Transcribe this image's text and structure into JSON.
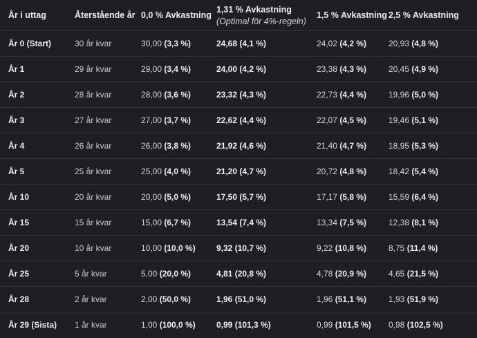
{
  "headers": {
    "year": "År i uttag",
    "remaining": "Återstående år",
    "r0": "0,0 % Avkastning",
    "r131": "1,31 % Avkastning",
    "r131_sub": "(Optimal för 4%-regeln)",
    "r15": "1,5 % Avkastning",
    "r25": "2,5 % Avkastning"
  },
  "rows": [
    {
      "year": "År 0 (Start)",
      "remaining": "30 år kvar",
      "c0v": "30,00",
      "c0p": "(3,3 %)",
      "c1v": "24,68",
      "c1p": "(4,1 %)",
      "c2v": "24,02",
      "c2p": "(4,2 %)",
      "c3v": "20,93",
      "c3p": "(4,8 %)"
    },
    {
      "year": "År 1",
      "remaining": "29 år kvar",
      "c0v": "29,00",
      "c0p": "(3,4 %)",
      "c1v": "24,00",
      "c1p": "(4,2 %)",
      "c2v": "23,38",
      "c2p": "(4,3 %)",
      "c3v": "20,45",
      "c3p": "(4,9 %)"
    },
    {
      "year": "År 2",
      "remaining": "28 år kvar",
      "c0v": "28,00",
      "c0p": "(3,6 %)",
      "c1v": "23,32",
      "c1p": "(4,3 %)",
      "c2v": "22,73",
      "c2p": "(4,4 %)",
      "c3v": "19,96",
      "c3p": "(5,0 %)"
    },
    {
      "year": "År 3",
      "remaining": "27 år kvar",
      "c0v": "27,00",
      "c0p": "(3,7 %)",
      "c1v": "22,62",
      "c1p": "(4,4 %)",
      "c2v": "22,07",
      "c2p": "(4,5 %)",
      "c3v": "19,46",
      "c3p": "(5,1 %)"
    },
    {
      "year": "År 4",
      "remaining": "26 år kvar",
      "c0v": "26,00",
      "c0p": "(3,8 %)",
      "c1v": "21,92",
      "c1p": "(4,6 %)",
      "c2v": "21,40",
      "c2p": "(4,7 %)",
      "c3v": "18,95",
      "c3p": "(5,3 %)"
    },
    {
      "year": "År 5",
      "remaining": "25 år kvar",
      "c0v": "25,00",
      "c0p": "(4,0 %)",
      "c1v": "21,20",
      "c1p": "(4,7 %)",
      "c2v": "20,72",
      "c2p": "(4,8 %)",
      "c3v": "18,42",
      "c3p": "(5,4 %)"
    },
    {
      "year": "År 10",
      "remaining": "20 år kvar",
      "c0v": "20,00",
      "c0p": "(5,0 %)",
      "c1v": "17,50",
      "c1p": "(5,7 %)",
      "c2v": "17,17",
      "c2p": "(5,8 %)",
      "c3v": "15,59",
      "c3p": "(6,4 %)"
    },
    {
      "year": "År 15",
      "remaining": "15 år kvar",
      "c0v": "15,00",
      "c0p": "(6,7 %)",
      "c1v": "13,54",
      "c1p": "(7,4 %)",
      "c2v": "13,34",
      "c2p": "(7,5 %)",
      "c3v": "12,38",
      "c3p": "(8,1 %)"
    },
    {
      "year": "År 20",
      "remaining": "10 år kvar",
      "c0v": "10,00",
      "c0p": "(10,0 %)",
      "c1v": "9,32",
      "c1p": "(10,7 %)",
      "c2v": "9,22",
      "c2p": "(10,8 %)",
      "c3v": "8,75",
      "c3p": "(11,4 %)"
    },
    {
      "year": "År 25",
      "remaining": "5 år kvar",
      "c0v": "5,00",
      "c0p": "(20,0 %)",
      "c1v": "4,81",
      "c1p": "(20,8 %)",
      "c2v": "4,78",
      "c2p": "(20,9 %)",
      "c3v": "4,65",
      "c3p": "(21,5 %)"
    },
    {
      "year": "År 28",
      "remaining": "2 år kvar",
      "c0v": "2,00",
      "c0p": "(50,0 %)",
      "c1v": "1,96",
      "c1p": "(51,0 %)",
      "c2v": "1,96",
      "c2p": "(51,1 %)",
      "c3v": "1,93",
      "c3p": "(51,9 %)"
    },
    {
      "year": "År 29 (Sista)",
      "remaining": "1 år kvar",
      "c0v": "1,00",
      "c0p": "(100,0 %)",
      "c1v": "0,99",
      "c1p": "(101,3 %)",
      "c2v": "0,99",
      "c2p": "(101,5 %)",
      "c3v": "0,98",
      "c3p": "(102,5 %)"
    }
  ]
}
